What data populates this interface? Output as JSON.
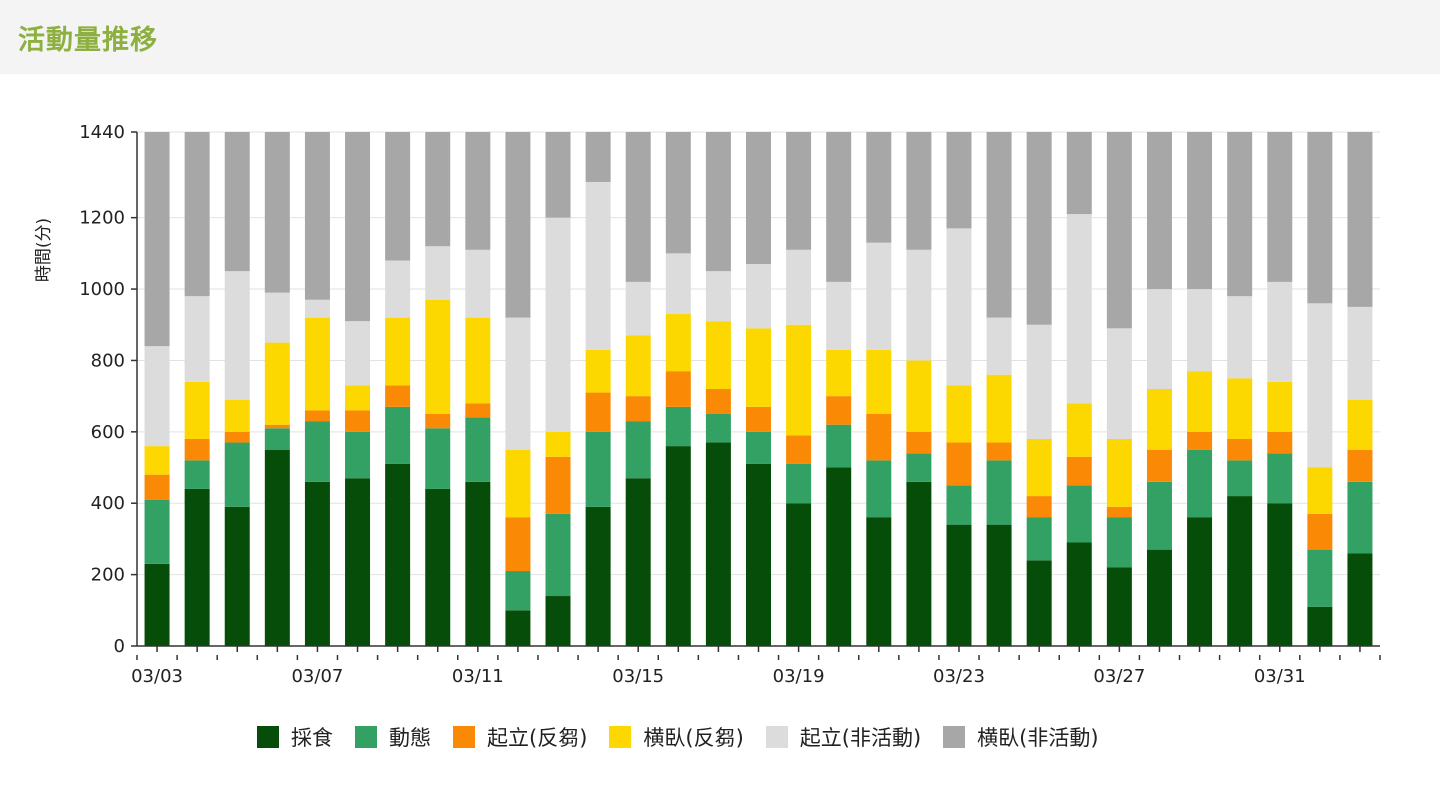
{
  "header": {
    "title": "活動量推移"
  },
  "colors": {
    "採食": "#054d08",
    "動態": "#33a064",
    "起立(反芻)": "#fa8a05",
    "横臥(反芻)": "#fdd700",
    "起立(非活動)": "#dcdcdc",
    "横臥(非活動)": "#a7a7a7",
    "header_title": "#8db040"
  },
  "chart_data": {
    "type": "bar",
    "stacked": true,
    "ylabel": "時間(分)",
    "xlabel": "",
    "ylim": [
      0,
      1440
    ],
    "yticks": [
      0,
      200,
      400,
      600,
      800,
      1000,
      1200,
      1440
    ],
    "grid": true,
    "legend_position": "bottom",
    "categories": [
      "03/03",
      "03/04",
      "03/05",
      "03/06",
      "03/07",
      "03/08",
      "03/09",
      "03/10",
      "03/11",
      "03/12",
      "03/13",
      "03/14",
      "03/15",
      "03/16",
      "03/17",
      "03/18",
      "03/19",
      "03/20",
      "03/21",
      "03/22",
      "03/23",
      "03/24",
      "03/25",
      "03/26",
      "03/27",
      "03/28",
      "03/29",
      "03/30",
      "03/31",
      "04/01",
      "04/02"
    ],
    "xtick_labels": [
      "03/03",
      "03/07",
      "03/11",
      "03/15",
      "03/19",
      "03/23",
      "03/27",
      "03/31"
    ],
    "series": [
      {
        "name": "採食",
        "values": [
          230,
          440,
          390,
          550,
          460,
          470,
          510,
          440,
          460,
          100,
          140,
          390,
          470,
          560,
          570,
          510,
          400,
          500,
          360,
          460,
          340,
          340,
          240,
          290,
          220,
          270,
          360,
          420,
          400,
          110,
          260
        ]
      },
      {
        "name": "動態",
        "values": [
          180,
          80,
          180,
          60,
          170,
          130,
          160,
          170,
          180,
          110,
          230,
          210,
          160,
          110,
          80,
          90,
          110,
          120,
          160,
          80,
          110,
          180,
          120,
          160,
          140,
          190,
          190,
          100,
          140,
          160,
          200
        ]
      },
      {
        "name": "起立(反芻)",
        "values": [
          70,
          60,
          30,
          10,
          30,
          60,
          60,
          40,
          40,
          150,
          160,
          110,
          70,
          100,
          70,
          70,
          80,
          80,
          130,
          60,
          120,
          50,
          60,
          80,
          30,
          90,
          50,
          60,
          60,
          100,
          90
        ]
      },
      {
        "name": "横臥(反芻)",
        "values": [
          80,
          160,
          90,
          230,
          260,
          70,
          190,
          320,
          240,
          190,
          70,
          120,
          170,
          160,
          190,
          220,
          310,
          130,
          180,
          200,
          160,
          190,
          160,
          150,
          190,
          170,
          170,
          170,
          140,
          130,
          140
        ]
      },
      {
        "name": "起立(非活動)",
        "values": [
          280,
          240,
          360,
          140,
          50,
          180,
          160,
          150,
          190,
          370,
          600,
          470,
          150,
          170,
          140,
          180,
          210,
          190,
          300,
          310,
          440,
          160,
          320,
          530,
          310,
          280,
          230,
          230,
          280,
          460,
          260
        ]
      },
      {
        "name": "横臥(非活動)",
        "values": [
          600,
          460,
          390,
          450,
          470,
          530,
          360,
          320,
          330,
          520,
          240,
          140,
          420,
          340,
          390,
          370,
          330,
          420,
          310,
          330,
          270,
          520,
          540,
          230,
          550,
          440,
          440,
          460,
          420,
          480,
          490
        ]
      }
    ]
  }
}
